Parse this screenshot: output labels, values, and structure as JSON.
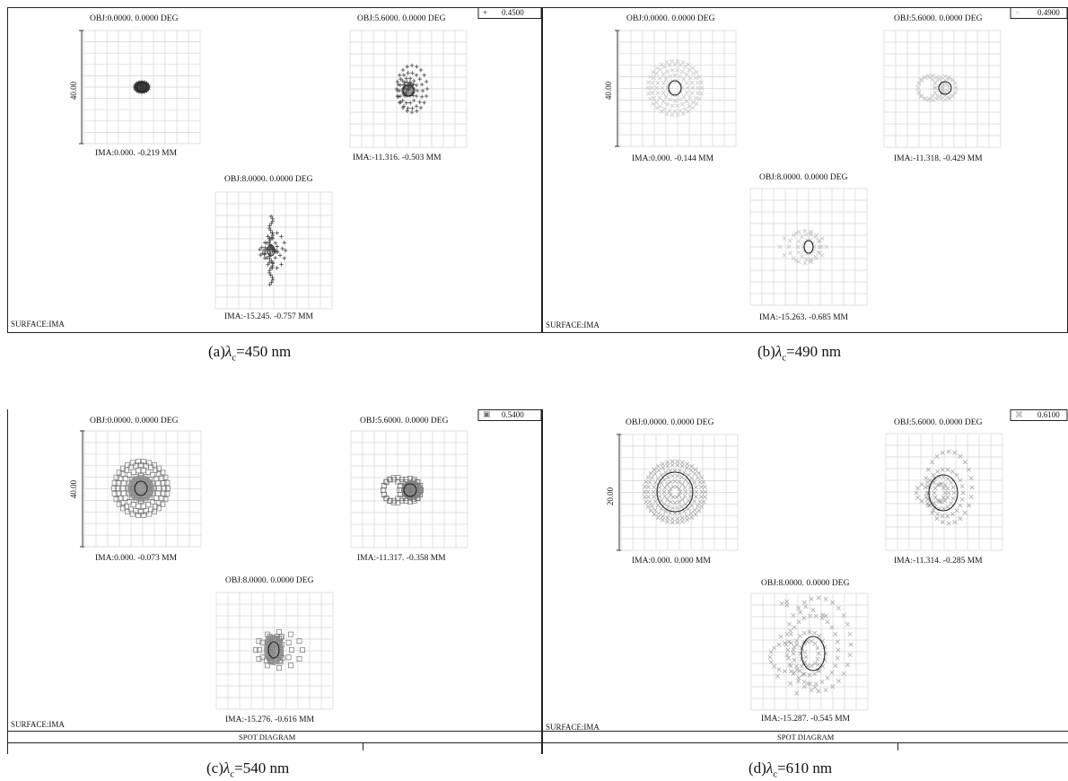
{
  "panels": [
    {
      "legend_value": "0.4500",
      "legend_symbol": "plus",
      "scale_label": "40.00",
      "surface_label": "SURFACE:IMA",
      "footer": "",
      "caption": "(a)λc=450 nm",
      "caption_prefix": "(a)",
      "caption_lambda": "λ",
      "caption_sub": "c",
      "caption_suffix": "=450 nm",
      "spots": [
        {
          "obj": "OBJ:0.0000. 0.0000 DEG",
          "ima": "IMA:0.000. -0.219 MM",
          "shape": "tight",
          "symbol": "plus",
          "color": "#444444"
        },
        {
          "obj": "OBJ:5.6000. 0.0000 DEG",
          "ima": "IMA:-11.316. -0.503 MM",
          "shape": "comet",
          "symbol": "plus",
          "color": "#444444"
        },
        {
          "obj": "OBJ:8.0000. 0.0000 DEG",
          "ima": "IMA:-15.245. -0.757 MM",
          "shape": "vertical",
          "symbol": "plus",
          "color": "#444444"
        }
      ]
    },
    {
      "legend_value": "0.4900",
      "legend_symbol": "x",
      "scale_label": "40.00",
      "surface_label": "SURFACE:IMA",
      "footer": "",
      "caption": "(b)λc=490 nm",
      "caption_prefix": "(b)",
      "caption_lambda": "λ",
      "caption_sub": "c",
      "caption_suffix": "=490 nm",
      "spots": [
        {
          "obj": "OBJ:0.0000. 0.0000 DEG",
          "ima": "IMA:0.000. -0.144 MM",
          "shape": "disc",
          "symbol": "x",
          "color": "#c8c8c8"
        },
        {
          "obj": "OBJ:5.6000. 0.0000 DEG",
          "ima": "IMA:-11.318. -0.429 MM",
          "shape": "bean",
          "symbol": "x",
          "color": "#c8c8c8"
        },
        {
          "obj": "OBJ:8.0000. 0.0000 DEG",
          "ima": "IMA:-15.263. -0.685 MM",
          "shape": "small",
          "symbol": "x",
          "color": "#c8c8c8"
        }
      ]
    },
    {
      "legend_value": "0.5400",
      "legend_symbol": "square",
      "scale_label": "40.00",
      "surface_label": "SURFACE:IMA",
      "footer": "SPOT DIAGRAM",
      "caption": "(c)λc=540 nm",
      "caption_prefix": "(c)",
      "caption_lambda": "λ",
      "caption_sub": "c",
      "caption_suffix": "=540 nm",
      "spots": [
        {
          "obj": "OBJ:0.0000. 0.0000 DEG",
          "ima": "IMA:0.000. -0.073 MM",
          "shape": "disc",
          "symbol": "square",
          "color": "#777777"
        },
        {
          "obj": "OBJ:5.6000. 0.0000 DEG",
          "ima": "IMA:-11.317. -0.358 MM",
          "shape": "bean",
          "symbol": "square",
          "color": "#777777"
        },
        {
          "obj": "OBJ:8.0000. 0.0000 DEG",
          "ima": "IMA:-15.276. -0.616 MM",
          "shape": "column",
          "symbol": "square",
          "color": "#777777"
        }
      ]
    },
    {
      "legend_value": "0.6100",
      "legend_symbol": "x",
      "scale_label": "20.00",
      "surface_label": "SURFACE:IMA",
      "footer": "SPOT DIAGRAM",
      "caption": "(d)λc=610 nm",
      "caption_prefix": "(d)",
      "caption_lambda": "λ",
      "caption_sub": "c",
      "caption_suffix": "=610 nm",
      "spots": [
        {
          "obj": "OBJ:0.0000. 0.0000 DEG",
          "ima": "IMA:0.000. 0.000 MM",
          "shape": "bigdisc",
          "symbol": "x",
          "color": "#a8a8a8"
        },
        {
          "obj": "OBJ:5.6000. 0.0000 DEG",
          "ima": "IMA:-11.314. -0.285 MM",
          "shape": "blob",
          "symbol": "x",
          "color": "#a8a8a8"
        },
        {
          "obj": "OBJ:8.0000. 0.0000 DEG",
          "ima": "IMA:-15.287. -0.545 MM",
          "shape": "spread",
          "symbol": "x",
          "color": "#a8a8a8"
        }
      ]
    }
  ]
}
